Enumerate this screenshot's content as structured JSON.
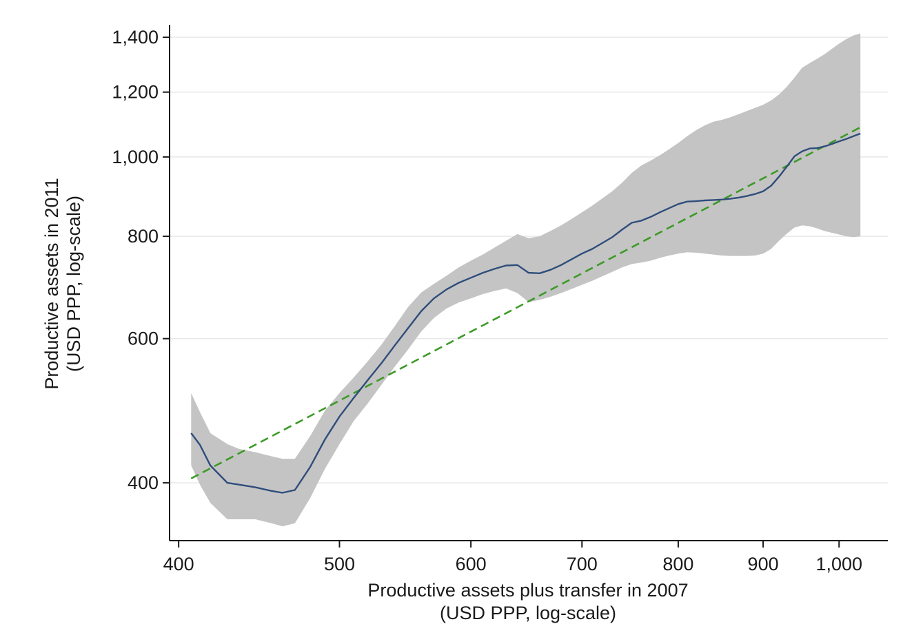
{
  "chart_data": {
    "type": "line",
    "xlabel": [
      "Productive assets plus transfer in 2007",
      "(USD PPP, log-scale)"
    ],
    "ylabel": [
      "Productive assets in 2011",
      "(USD PPP, log-scale)"
    ],
    "x_scale": "log",
    "y_scale": "log",
    "xlim": [
      395,
      1070
    ],
    "ylim": [
      340,
      1450
    ],
    "x_ticks": [
      {
        "value": 400,
        "label": "400"
      },
      {
        "value": 500,
        "label": "500"
      },
      {
        "value": 600,
        "label": "600"
      },
      {
        "value": 700,
        "label": "700"
      },
      {
        "value": 800,
        "label": "800"
      },
      {
        "value": 900,
        "label": "900"
      },
      {
        "value": 1000,
        "label": "1,000"
      }
    ],
    "y_ticks": [
      {
        "value": 400,
        "label": "400"
      },
      {
        "value": 600,
        "label": "600"
      },
      {
        "value": 800,
        "label": "800"
      },
      {
        "value": 1000,
        "label": "1,000"
      },
      {
        "value": 1200,
        "label": "1,200"
      },
      {
        "value": 1400,
        "label": "1,400"
      }
    ],
    "grid": "horizontal",
    "legend": "none",
    "colors": {
      "line": "#2e4d7b",
      "band": "#c4c4c4",
      "fit": "#3c9a26",
      "grid": "#e8e8e8",
      "axis": "#1a1a1a"
    },
    "series": [
      {
        "type": "line",
        "x": [
          407,
          412,
          418,
          428,
          435,
          445,
          455,
          462,
          470,
          480,
          490,
          500,
          510,
          520,
          530,
          540,
          550,
          560,
          570,
          580,
          590,
          600,
          610,
          620,
          630,
          640,
          650,
          660,
          670,
          680,
          690,
          700,
          710,
          720,
          730,
          740,
          750,
          760,
          770,
          780,
          790,
          800,
          810,
          820,
          830,
          840,
          850,
          860,
          870,
          880,
          890,
          900,
          910,
          920,
          930,
          940,
          950,
          960,
          970,
          980,
          990,
          1000,
          1010,
          1020,
          1030
        ],
        "y": [
          460,
          445,
          420,
          400,
          398,
          395,
          391,
          389,
          392,
          418,
          452,
          482,
          508,
          534,
          560,
          589,
          618,
          648,
          672,
          689,
          702,
          712,
          722,
          730,
          737,
          738,
          722,
          721,
          728,
          738,
          750,
          762,
          772,
          785,
          798,
          815,
          831,
          836,
          845,
          856,
          866,
          876,
          882,
          883,
          885,
          886,
          887,
          889,
          892,
          896,
          901,
          908,
          922,
          946,
          973,
          1002,
          1016,
          1024,
          1025,
          1030,
          1037,
          1045,
          1052,
          1060,
          1068
        ]
      },
      {
        "type": "band",
        "x": [
          407,
          412,
          418,
          428,
          435,
          445,
          455,
          462,
          470,
          480,
          490,
          500,
          510,
          520,
          530,
          540,
          550,
          560,
          570,
          580,
          590,
          600,
          610,
          620,
          630,
          640,
          650,
          660,
          670,
          680,
          690,
          700,
          710,
          720,
          730,
          740,
          750,
          760,
          770,
          780,
          790,
          800,
          810,
          820,
          830,
          840,
          850,
          860,
          870,
          880,
          890,
          900,
          910,
          920,
          930,
          940,
          950,
          960,
          970,
          980,
          990,
          1000,
          1010,
          1020,
          1030
        ],
        "upper": [
          515,
          488,
          460,
          446,
          440,
          436,
          431,
          428,
          428,
          456,
          490,
          515,
          538,
          563,
          590,
          622,
          656,
          683,
          700,
          716,
          733,
          747,
          760,
          775,
          790,
          805,
          796,
          800,
          812,
          825,
          840,
          856,
          872,
          890,
          908,
          930,
          956,
          976,
          990,
          1005,
          1022,
          1040,
          1060,
          1078,
          1093,
          1104,
          1110,
          1118,
          1128,
          1138,
          1148,
          1158,
          1172,
          1192,
          1218,
          1250,
          1285,
          1302,
          1318,
          1335,
          1355,
          1375,
          1393,
          1407,
          1415
        ],
        "lower": [
          420,
          398,
          378,
          361,
          361,
          361,
          357,
          354,
          357,
          383,
          416,
          446,
          476,
          500,
          527,
          555,
          582,
          612,
          636,
          653,
          664,
          672,
          680,
          686,
          691,
          682,
          665,
          669,
          675,
          682,
          690,
          698,
          706,
          715,
          724,
          733,
          740,
          743,
          747,
          753,
          758,
          762,
          765,
          764,
          762,
          760,
          758,
          757,
          757,
          757,
          758,
          762,
          772,
          790,
          806,
          820,
          825,
          823,
          818,
          812,
          808,
          804,
          800,
          798,
          800
        ]
      },
      {
        "type": "fit",
        "x": [
          407,
          1030
        ],
        "y": [
          405,
          1087
        ]
      }
    ]
  }
}
